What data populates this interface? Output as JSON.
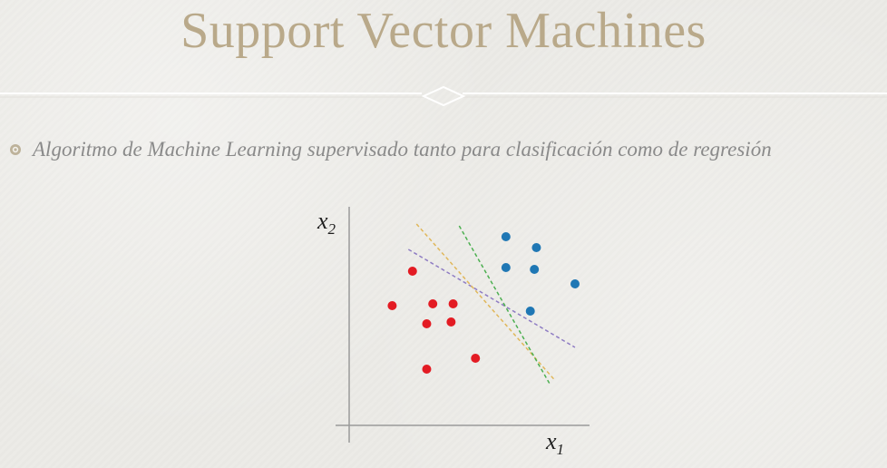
{
  "slide": {
    "title": "Support Vector Machines",
    "bullet": "Algoritmo de Machine Learning supervisado tanto para clasificación como de regresión"
  },
  "chart_data": {
    "type": "scatter",
    "xlabel": "x",
    "xlabel_sub": "1",
    "ylabel": "x",
    "ylabel_sub": "2",
    "xlim": [
      0,
      10
    ],
    "ylim": [
      0,
      10
    ],
    "grid": false,
    "series": [
      {
        "color": "#e31b23",
        "points": [
          [
            1.0,
            5.2
          ],
          [
            2.0,
            7.1
          ],
          [
            2.7,
            4.2
          ],
          [
            3.0,
            5.3
          ],
          [
            3.9,
            4.3
          ],
          [
            4.0,
            5.3
          ],
          [
            2.7,
            1.7
          ],
          [
            5.1,
            2.3
          ]
        ]
      },
      {
        "color": "#1f77b4",
        "points": [
          [
            6.6,
            9.0
          ],
          [
            8.1,
            8.4
          ],
          [
            6.6,
            7.3
          ],
          [
            8.0,
            7.2
          ],
          [
            10.0,
            6.4
          ],
          [
            7.8,
            4.9
          ]
        ]
      }
    ],
    "boundaries": [
      {
        "color": "#8e7cc3",
        "style": "dashed",
        "from": [
          1.8,
          8.3
        ],
        "to": [
          10.0,
          2.9
        ]
      },
      {
        "color": "#e0b75a",
        "style": "dashed",
        "from": [
          2.2,
          9.7
        ],
        "to": [
          9.0,
          1.1
        ]
      },
      {
        "color": "#4caf50",
        "style": "dashed",
        "from": [
          4.3,
          9.6
        ],
        "to": [
          8.8,
          0.8
        ]
      }
    ]
  }
}
